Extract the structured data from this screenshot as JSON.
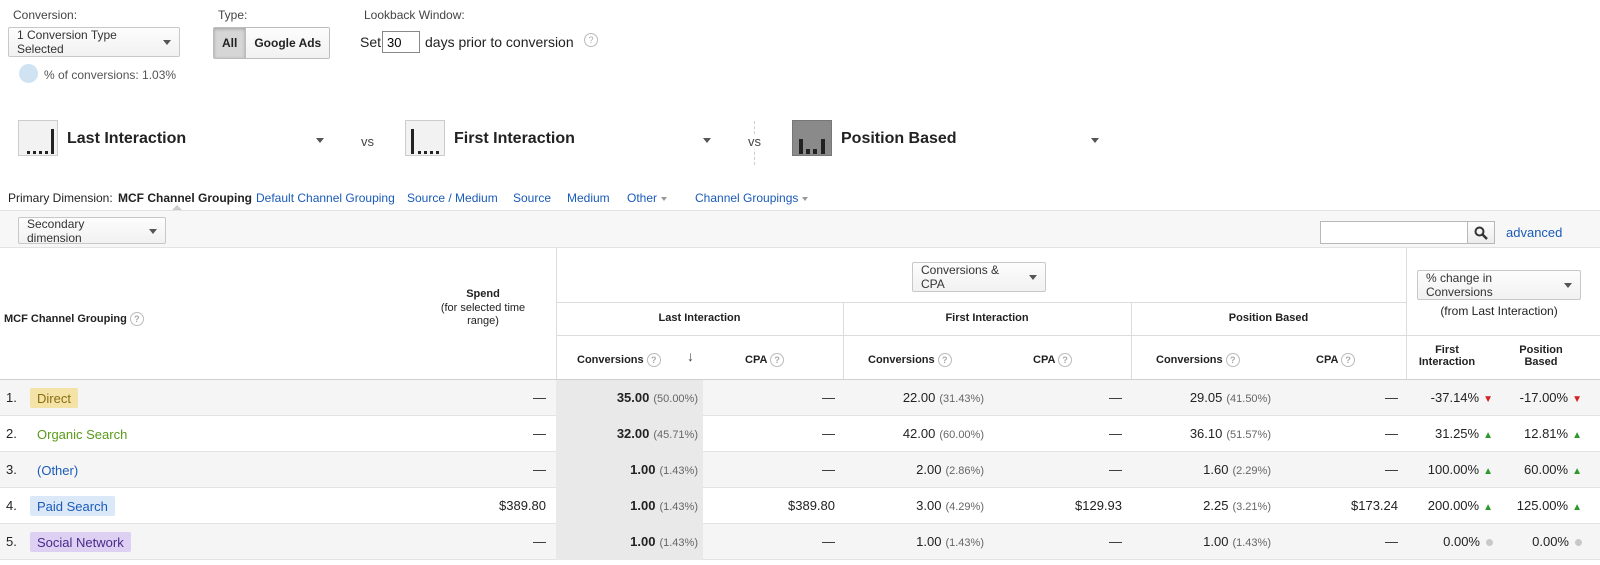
{
  "filters": {
    "conversion_label": "Conversion:",
    "conversion_value": "1 Conversion Type Selected",
    "percent_conversions": "% of conversions: 1.03%",
    "type_label": "Type:",
    "type_options": [
      "All",
      "Google Ads"
    ],
    "lookback_label": "Lookback Window:",
    "lookback_prefix": "Set",
    "lookback_value": "30",
    "lookback_suffix": "days prior to conversion"
  },
  "models": [
    {
      "name": "Last Interaction"
    },
    {
      "name": "First Interaction"
    },
    {
      "name": "Position Based"
    }
  ],
  "vs_label": "vs",
  "dimensions": {
    "label": "Primary Dimension:",
    "active": "MCF Channel Grouping",
    "links": [
      "Default Channel Grouping",
      "Source / Medium",
      "Source",
      "Medium",
      "Other",
      "Channel Groupings"
    ]
  },
  "toolbar": {
    "secondary_dimension": "Secondary dimension",
    "advanced": "advanced"
  },
  "table": {
    "dim_header": "MCF Channel Grouping",
    "spend_header": "Spend",
    "spend_sub": "(for selected time range)",
    "metric_select": "Conversions & CPA",
    "change_select": "% change in Conversions",
    "change_sub": "(from Last Interaction)",
    "groups": [
      "Last Interaction",
      "First Interaction",
      "Position Based"
    ],
    "sub_conversions": "Conversions",
    "sub_cpa": "CPA",
    "change_cols": [
      "First Interaction",
      "Position Based"
    ],
    "rows": [
      {
        "num": "1.",
        "name": "Direct",
        "chip_bg": "#f4e3a6",
        "chip_fg": "#8a6d10",
        "spend": "—",
        "li_conv": "35.00",
        "li_pct": "(50.00%)",
        "li_cpa": "—",
        "fi_conv": "22.00",
        "fi_pct": "(31.43%)",
        "fi_cpa": "—",
        "pb_conv": "29.05",
        "pb_pct": "(41.50%)",
        "pb_cpa": "—",
        "ch_fi": "-37.14%",
        "ch_fi_dir": "down",
        "ch_pb": "-17.00%",
        "ch_pb_dir": "down"
      },
      {
        "num": "2.",
        "name": "Organic Search",
        "chip_bg": "#ffffff",
        "chip_fg": "#5a9a1a",
        "spend": "—",
        "li_conv": "32.00",
        "li_pct": "(45.71%)",
        "li_cpa": "—",
        "fi_conv": "42.00",
        "fi_pct": "(60.00%)",
        "fi_cpa": "—",
        "pb_conv": "36.10",
        "pb_pct": "(51.57%)",
        "pb_cpa": "—",
        "ch_fi": "31.25%",
        "ch_fi_dir": "up",
        "ch_pb": "12.81%",
        "ch_pb_dir": "up"
      },
      {
        "num": "3.",
        "name": "(Other)",
        "chip_bg": "#f5f5f5",
        "chip_fg": "#1a5bb8",
        "spend": "—",
        "li_conv": "1.00",
        "li_pct": "(1.43%)",
        "li_cpa": "—",
        "fi_conv": "2.00",
        "fi_pct": "(2.86%)",
        "fi_cpa": "—",
        "pb_conv": "1.60",
        "pb_pct": "(2.29%)",
        "pb_cpa": "—",
        "ch_fi": "100.00%",
        "ch_fi_dir": "up",
        "ch_pb": "60.00%",
        "ch_pb_dir": "up"
      },
      {
        "num": "4.",
        "name": "Paid Search",
        "chip_bg": "#dbe8f8",
        "chip_fg": "#1a5bb8",
        "spend": "$389.80",
        "li_conv": "1.00",
        "li_pct": "(1.43%)",
        "li_cpa": "$389.80",
        "fi_conv": "3.00",
        "fi_pct": "(4.29%)",
        "fi_cpa": "$129.93",
        "pb_conv": "2.25",
        "pb_pct": "(3.21%)",
        "pb_cpa": "$173.24",
        "ch_fi": "200.00%",
        "ch_fi_dir": "up",
        "ch_pb": "125.00%",
        "ch_pb_dir": "up"
      },
      {
        "num": "5.",
        "name": "Social Network",
        "chip_bg": "#ddd0f3",
        "chip_fg": "#4a2a8a",
        "spend": "—",
        "li_conv": "1.00",
        "li_pct": "(1.43%)",
        "li_cpa": "—",
        "fi_conv": "1.00",
        "fi_pct": "(1.43%)",
        "fi_cpa": "—",
        "pb_conv": "1.00",
        "pb_pct": "(1.43%)",
        "pb_cpa": "—",
        "ch_fi": "0.00%",
        "ch_fi_dir": "neutral",
        "ch_pb": "0.00%",
        "ch_pb_dir": "neutral"
      }
    ]
  }
}
